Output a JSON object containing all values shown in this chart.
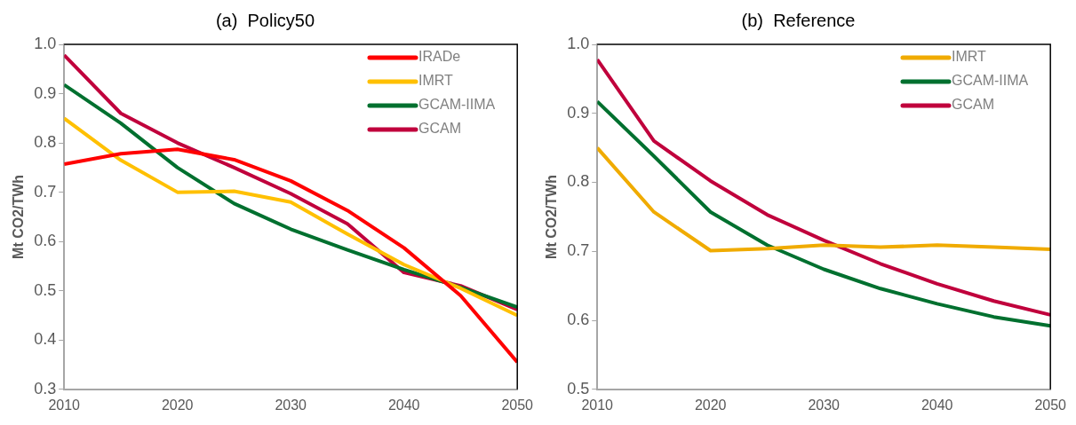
{
  "chart_data": [
    {
      "type": "line",
      "title": "(a)  Policy50",
      "ylabel": "Mt CO2/TWh",
      "x": [
        2010,
        2015,
        2020,
        2025,
        2030,
        2035,
        2040,
        2045,
        2050
      ],
      "xlim": [
        2010,
        2050
      ],
      "xticks": [
        2010,
        2020,
        2030,
        2040,
        2050
      ],
      "ylim": [
        0.3,
        1
      ],
      "yticks": [
        0.3,
        0.4,
        0.5,
        0.6,
        0.7,
        0.8,
        0.9,
        {
          "value": 1,
          "label": "1.0"
        }
      ],
      "grid": false,
      "legend": "top right",
      "series": [
        {
          "name": "IRADe",
          "color": "#ff0000",
          "values": [
            0.757,
            0.778,
            0.787,
            0.766,
            0.723,
            0.663,
            0.587,
            0.49,
            0.355
          ]
        },
        {
          "name": "IMRT",
          "color": "#ffc000",
          "values": [
            0.85,
            0.765,
            0.7,
            0.702,
            0.68,
            0.615,
            0.553,
            0.505,
            0.45
          ]
        },
        {
          "name": "GCAM-IIMA",
          "color": "#00702f",
          "values": [
            0.918,
            0.84,
            0.75,
            0.677,
            0.625,
            0.583,
            0.543,
            0.507,
            0.467
          ]
        },
        {
          "name": "GCAM",
          "color": "#c0003c",
          "values": [
            0.978,
            0.86,
            0.8,
            0.75,
            0.697,
            0.636,
            0.537,
            0.51,
            0.462
          ]
        }
      ]
    },
    {
      "type": "line",
      "title": "(b)  Reference",
      "ylabel": "Mt CO2/TWh",
      "x": [
        2010,
        2015,
        2020,
        2025,
        2030,
        2035,
        2040,
        2045,
        2050
      ],
      "xlim": [
        2010,
        2050
      ],
      "xticks": [
        2010,
        2020,
        2030,
        2040,
        2050
      ],
      "ylim": [
        0.5,
        1
      ],
      "yticks": [
        0.5,
        0.6,
        0.7,
        0.8,
        0.9,
        {
          "value": 1,
          "label": "1.0"
        }
      ],
      "grid": false,
      "legend": "top right",
      "series": [
        {
          "name": "IMRT",
          "color": "#f0ab00",
          "values": [
            0.85,
            0.757,
            0.701,
            0.704,
            0.709,
            0.706,
            0.709,
            0.706,
            0.703
          ]
        },
        {
          "name": "GCAM-IIMA",
          "color": "#00702f",
          "values": [
            0.917,
            0.838,
            0.757,
            0.709,
            0.674,
            0.646,
            0.624,
            0.605,
            0.592
          ]
        },
        {
          "name": "GCAM",
          "color": "#c0003c",
          "values": [
            0.978,
            0.86,
            0.802,
            0.753,
            0.716,
            0.682,
            0.653,
            0.628,
            0.608
          ]
        }
      ]
    }
  ]
}
